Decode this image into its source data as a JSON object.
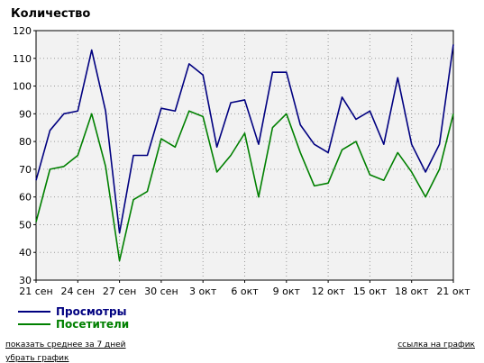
{
  "chart_data": {
    "type": "line",
    "title": "Количество",
    "xlabel": "",
    "ylabel": "",
    "ylim": [
      30,
      120
    ],
    "yticks": [
      30,
      40,
      50,
      60,
      70,
      80,
      90,
      100,
      110,
      120
    ],
    "x_tick_labels": [
      "21 сен",
      "24 сен",
      "27 сен",
      "30 сен",
      "3 окт",
      "6 окт",
      "9 окт",
      "12 окт",
      "15 окт",
      "18 окт",
      "21 окт"
    ],
    "x_tick_indices": [
      0,
      3,
      6,
      9,
      12,
      15,
      18,
      21,
      24,
      27,
      30
    ],
    "x": [
      "21 сен",
      "22 сен",
      "23 сен",
      "24 сен",
      "25 сен",
      "26 сен",
      "27 сен",
      "28 сен",
      "29 сен",
      "30 сен",
      "1 окт",
      "2 окт",
      "3 окт",
      "4 окт",
      "5 окт",
      "6 окт",
      "7 окт",
      "8 окт",
      "9 окт",
      "10 окт",
      "11 окт",
      "12 окт",
      "13 окт",
      "14 окт",
      "15 окт",
      "16 окт",
      "17 окт",
      "18 окт",
      "19 окт",
      "20 окт",
      "21 окт"
    ],
    "grid": true,
    "legend_position": "bottom-left",
    "series": [
      {
        "name": "Просмотры",
        "color": "#000080",
        "values": [
          66,
          84,
          90,
          91,
          113,
          91,
          47,
          75,
          75,
          92,
          91,
          108,
          104,
          78,
          94,
          95,
          79,
          105,
          105,
          86,
          79,
          76,
          96,
          88,
          91,
          79,
          103,
          79,
          69,
          79,
          115
        ]
      },
      {
        "name": "Посетители",
        "color": "#008000",
        "values": [
          51,
          70,
          71,
          75,
          90,
          71,
          37,
          59,
          62,
          81,
          78,
          91,
          89,
          69,
          75,
          83,
          60,
          85,
          90,
          76,
          64,
          65,
          77,
          80,
          68,
          66,
          76,
          69,
          60,
          70,
          90
        ]
      }
    ]
  },
  "links": {
    "show_average": "показать среднее за 7 дней",
    "chart_link": "ссылка на график",
    "hide_chart": "убрать график"
  }
}
